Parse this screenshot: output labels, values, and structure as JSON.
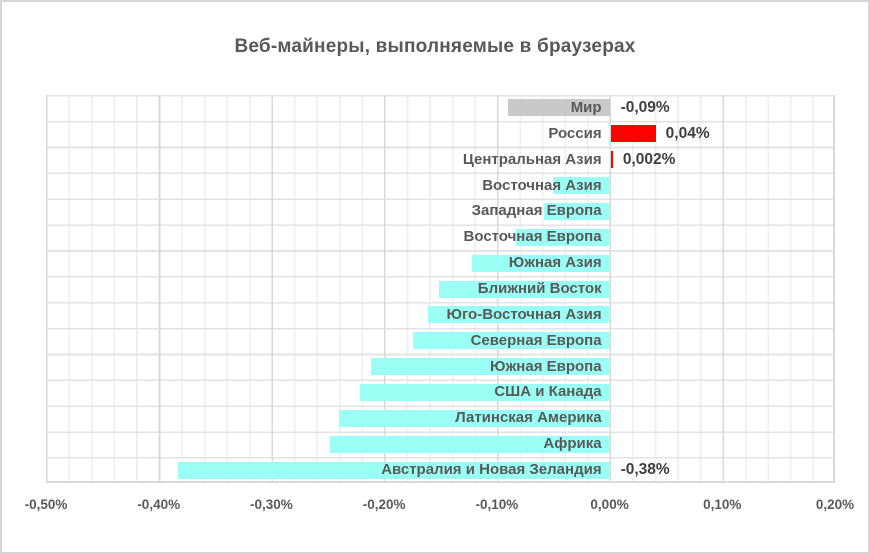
{
  "chart_data": {
    "type": "bar",
    "orientation": "horizontal",
    "title": "Веб-майнеры, выполняемые в браузерах",
    "xlabel": "",
    "ylabel": "",
    "xlim": [
      -0.5,
      0.2
    ],
    "grid": "major vertical every 0.10%, minor vertical every 0.02%, horizontal line per category",
    "legend": "none",
    "x_tick_values": [
      -0.5,
      -0.4,
      -0.3,
      -0.2,
      -0.1,
      0.0,
      0.1,
      0.2
    ],
    "x_tick_labels": [
      "-0,50%",
      "-0,40%",
      "-0,30%",
      "-0,20%",
      "-0,10%",
      "0,00%",
      "0,10%",
      "0,20%"
    ],
    "rows": [
      {
        "label": "Мир",
        "value": -0.09,
        "value_label": "-0,09%",
        "color": "#c9c9c9"
      },
      {
        "label": "Россия",
        "value": 0.04,
        "value_label": "0,04%",
        "color": "#ff0000"
      },
      {
        "label": "Центральная Азия",
        "value": 0.002,
        "value_label": "0,002%",
        "color": "#ff0000"
      },
      {
        "label": "Восточная Азия",
        "value": -0.05,
        "value_label": "",
        "color": "#9afff5"
      },
      {
        "label": "Западная Европа",
        "value": -0.058,
        "value_label": "",
        "color": "#9afff5"
      },
      {
        "label": "Восточная Европа",
        "value": -0.083,
        "value_label": "",
        "color": "#9afff5"
      },
      {
        "label": "Южная Азия",
        "value": -0.122,
        "value_label": "",
        "color": "#9afff5"
      },
      {
        "label": "Ближний Восток",
        "value": -0.151,
        "value_label": "",
        "color": "#9afff5"
      },
      {
        "label": "Юго-Восточная Азия",
        "value": -0.161,
        "value_label": "",
        "color": "#9afff5"
      },
      {
        "label": "Северная Европа",
        "value": -0.174,
        "value_label": "",
        "color": "#9afff5"
      },
      {
        "label": "Южная Европа",
        "value": -0.212,
        "value_label": "",
        "color": "#9afff5"
      },
      {
        "label": "США и Канада",
        "value": -0.221,
        "value_label": "",
        "color": "#9afff5"
      },
      {
        "label": "Латинская Америка",
        "value": -0.24,
        "value_label": "",
        "color": "#9afff5"
      },
      {
        "label": "Африка",
        "value": -0.248,
        "value_label": "",
        "color": "#9afff5"
      },
      {
        "label": "Австралия и Новая Зеландия",
        "value": -0.383,
        "value_label": "-0,38%",
        "color": "#9afff5"
      }
    ]
  },
  "colors": {
    "background": "#ffffff",
    "frame_border": "#d5d5d5",
    "title_text": "#595959",
    "category_text": "#595959",
    "value_text": "#3f3f3f",
    "axis_text": "#595959",
    "grid_major": "#d9d9d9",
    "grid_minor": "#efefef",
    "grid_horizontal": "#e3e3e3",
    "bar_world": "#c9c9c9",
    "bar_russia": "#ff0000",
    "bar_region": "#9afff5"
  }
}
